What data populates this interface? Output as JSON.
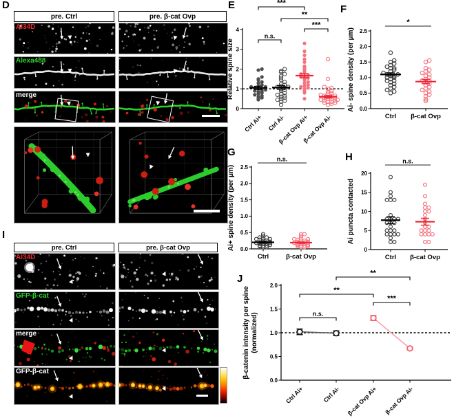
{
  "figure": {
    "panel_labels": {
      "D": "D",
      "E": "E",
      "F": "F",
      "G": "G",
      "H": "H",
      "I": "I",
      "J": "J"
    }
  },
  "panel_d": {
    "col_headers": [
      "pre. Ctrl",
      "pre. β-cat Ovp"
    ],
    "rows": [
      {
        "label": "AI34D",
        "label_color": "#e5262d"
      },
      {
        "label": "Alexa488",
        "label_color": "#2fd42f"
      },
      {
        "label": "merge",
        "label_color": "#ffffff"
      }
    ]
  },
  "panel_i": {
    "col_headers": [
      "pre. Ctrl",
      "pre. β-cat Ovp"
    ],
    "rows": [
      {
        "label": "AI34D",
        "label_color": "#e5262d"
      },
      {
        "label": "GFP-β-cat",
        "label_color": "#2fd42f"
      },
      {
        "label": "merge",
        "label_color": "#ffffff"
      },
      {
        "label": "GFP-β-cat",
        "label_color": "#ffffff"
      }
    ],
    "colorbar_colors": [
      "#ffffff",
      "#ffe97a",
      "#ffc400",
      "#ff7a00",
      "#f02500",
      "#8a0500",
      "#000000"
    ]
  },
  "chart_data": [
    {
      "id": "E",
      "type": "scatter",
      "title": "",
      "ylabel": "Relative spine size",
      "ylim": [
        0,
        4
      ],
      "yticks": [
        0,
        1,
        2,
        3,
        4
      ],
      "ytick_labels": [
        "0",
        "1",
        "2",
        "3",
        "4"
      ],
      "reference_line_y": 1,
      "categories": [
        "Ctrl Ai+",
        "Ctrl Ai-",
        "β-cat Ovp Ai+",
        "β-cat Ovp Ai-"
      ],
      "series": [
        {
          "name": "Ctrl Ai+",
          "marker": "filled",
          "color": "#4d4d4d",
          "bar_color": "#000000",
          "mean": 1.05,
          "sem": 0.08,
          "values": [
            0.45,
            0.5,
            0.55,
            0.6,
            0.65,
            0.7,
            0.75,
            0.8,
            0.85,
            0.9,
            0.9,
            0.95,
            1.0,
            1.0,
            1.05,
            1.1,
            1.1,
            1.15,
            1.2,
            1.3,
            1.35,
            1.45,
            1.5,
            1.6,
            1.95,
            2.0
          ]
        },
        {
          "name": "Ctrl Ai-",
          "marker": "open",
          "color": "#4d4d4d",
          "bar_color": "#000000",
          "mean": 1.07,
          "sem": 0.09,
          "values": [
            0.2,
            0.35,
            0.4,
            0.45,
            0.5,
            0.55,
            0.6,
            0.65,
            0.7,
            0.75,
            0.8,
            0.9,
            0.95,
            1.0,
            1.05,
            1.1,
            1.1,
            1.15,
            1.2,
            1.25,
            1.35,
            1.45,
            1.55,
            1.65,
            1.75,
            1.85,
            1.9,
            2.0
          ]
        },
        {
          "name": "β-cat Ovp Ai+",
          "marker": "filled",
          "color": "#f4737e",
          "bar_color": "#ee2433",
          "mean": 1.67,
          "sem": 0.1,
          "values": [
            0.5,
            0.8,
            0.9,
            1.0,
            1.05,
            1.1,
            1.15,
            1.2,
            1.3,
            1.35,
            1.45,
            1.5,
            1.55,
            1.6,
            1.65,
            1.7,
            1.75,
            1.85,
            1.95,
            2.05,
            2.15,
            2.35,
            2.5,
            2.7,
            2.9,
            3.3
          ]
        },
        {
          "name": "β-cat Ovp Ai-",
          "marker": "open",
          "color": "#f4737e",
          "bar_color": "#ee2433",
          "mean": 0.6,
          "sem": 0.06,
          "values": [
            0.2,
            0.25,
            0.3,
            0.3,
            0.35,
            0.35,
            0.4,
            0.4,
            0.45,
            0.45,
            0.5,
            0.5,
            0.55,
            0.55,
            0.6,
            0.6,
            0.65,
            0.65,
            0.7,
            0.75,
            0.8,
            0.85,
            0.9,
            1.0,
            1.05,
            1.1,
            1.5,
            2.5
          ]
        }
      ],
      "significance": [
        {
          "from": 0,
          "to": 2,
          "label": "***"
        },
        {
          "from": 1,
          "to": 3,
          "label": "**"
        },
        {
          "from": 2,
          "to": 3,
          "label": "***"
        },
        {
          "from": 0,
          "to": 1,
          "label": "n.s."
        }
      ]
    },
    {
      "id": "F",
      "type": "scatter",
      "title": "",
      "ylabel": "Ai- spine density (per μm)",
      "ylim": [
        0,
        2.5
      ],
      "yticks": [
        0,
        0.5,
        1,
        1.5,
        2,
        2.5
      ],
      "ytick_labels": [
        "0.0",
        "0.5",
        "1.0",
        "1.5",
        "2.0",
        "2.5"
      ],
      "categories": [
        "Ctrl",
        "β-cat Ovp"
      ],
      "series": [
        {
          "name": "Ctrl",
          "marker": "open",
          "color": "#3d3d3d",
          "bar_color": "#000000",
          "mean": 1.1,
          "sem": 0.05,
          "values": [
            0.5,
            0.55,
            0.6,
            0.65,
            0.7,
            0.75,
            0.8,
            0.85,
            0.9,
            0.9,
            0.95,
            1.0,
            1.0,
            1.05,
            1.05,
            1.1,
            1.1,
            1.15,
            1.2,
            1.25,
            1.3,
            1.3,
            1.35,
            1.4,
            1.45,
            1.5,
            1.55,
            1.8
          ]
        },
        {
          "name": "β-cat Ovp",
          "marker": "open",
          "color": "#f4737e",
          "bar_color": "#ee2433",
          "mean": 0.87,
          "sem": 0.07,
          "values": [
            0.25,
            0.3,
            0.4,
            0.45,
            0.5,
            0.55,
            0.6,
            0.65,
            0.7,
            0.75,
            0.8,
            0.85,
            0.9,
            0.9,
            0.95,
            1.0,
            1.05,
            1.1,
            1.15,
            1.2,
            1.25,
            1.3,
            1.5,
            1.55
          ]
        }
      ],
      "significance": [
        {
          "from": 0,
          "to": 1,
          "label": "*"
        }
      ]
    },
    {
      "id": "G",
      "type": "scatter",
      "title": "",
      "ylabel": "Ai+ spine density (per μm)",
      "ylim": [
        0,
        2.5
      ],
      "yticks": [
        0,
        0.5,
        1,
        1.5,
        2,
        2.5
      ],
      "ytick_labels": [
        "0.0",
        "0.5",
        "1.0",
        "1.5",
        "2.0",
        "2.5"
      ],
      "categories": [
        "Ctrl",
        "β-cat Ovp"
      ],
      "series": [
        {
          "name": "Ctrl",
          "marker": "open",
          "color": "#3d3d3d",
          "bar_color": "#000000",
          "mean": 0.2,
          "sem": 0.02,
          "values": [
            0.05,
            0.05,
            0.08,
            0.1,
            0.1,
            0.1,
            0.12,
            0.15,
            0.15,
            0.15,
            0.18,
            0.18,
            0.2,
            0.2,
            0.2,
            0.22,
            0.25,
            0.25,
            0.28,
            0.3,
            0.3,
            0.32,
            0.35,
            0.35,
            0.4,
            0.45
          ]
        },
        {
          "name": "β-cat Ovp",
          "marker": "open",
          "color": "#f4737e",
          "bar_color": "#ee2433",
          "mean": 0.19,
          "sem": 0.02,
          "values": [
            0.05,
            0.05,
            0.08,
            0.08,
            0.1,
            0.1,
            0.12,
            0.12,
            0.15,
            0.15,
            0.15,
            0.18,
            0.18,
            0.2,
            0.2,
            0.22,
            0.22,
            0.25,
            0.25,
            0.28,
            0.3,
            0.3,
            0.35,
            0.4,
            0.45,
            0.45
          ]
        }
      ],
      "significance": [
        {
          "from": 0,
          "to": 1,
          "label": "n.s."
        }
      ]
    },
    {
      "id": "H",
      "type": "scatter",
      "title": "",
      "ylabel": "Ai puncta contacted",
      "ylim": [
        0,
        20
      ],
      "yticks": [
        0,
        5,
        10,
        15,
        20
      ],
      "ytick_labels": [
        "0",
        "5",
        "10",
        "15",
        "20"
      ],
      "categories": [
        "Ctrl",
        "β-cat Ovp"
      ],
      "series": [
        {
          "name": "Ctrl",
          "marker": "open",
          "color": "#3d3d3d",
          "bar_color": "#000000",
          "mean": 7.7,
          "sem": 0.9,
          "values": [
            2,
            2,
            3,
            4,
            4,
            4,
            4,
            5,
            5,
            5,
            6,
            7,
            7,
            7,
            8,
            8,
            8,
            8,
            9,
            13,
            13,
            13,
            14,
            15,
            19
          ]
        },
        {
          "name": "β-cat Ovp",
          "marker": "open",
          "color": "#f4737e",
          "bar_color": "#ee2433",
          "mean": 7.3,
          "sem": 0.9,
          "values": [
            2,
            2,
            4,
            4,
            4,
            4,
            5,
            5,
            5,
            6,
            6,
            7,
            8,
            9,
            10,
            10,
            11,
            11,
            12,
            14,
            17
          ]
        }
      ],
      "significance": [
        {
          "from": 0,
          "to": 1,
          "label": "n.s."
        }
      ]
    },
    {
      "id": "J",
      "type": "line",
      "title": "",
      "ylabel_lines": [
        "β-catenin intensity per spine",
        "(normalized)"
      ],
      "ylim": [
        0,
        2
      ],
      "yticks": [
        0,
        0.5,
        1,
        1.5,
        2
      ],
      "ytick_labels": [
        "0.0",
        "0.5",
        "1.0",
        "1.5",
        "2.0"
      ],
      "reference_line_y": 1,
      "categories": [
        "Ctrl Ai+",
        "Ctrl Ai-",
        "β-cat Ovp Ai+",
        "β-cat Ovp Ai-"
      ],
      "points": [
        {
          "name": "Ctrl Ai+",
          "value": 1.02,
          "sem": 0.06,
          "color": "#1a1a1a",
          "bar_color": "#000000"
        },
        {
          "name": "Ctrl Ai-",
          "value": 0.99,
          "sem": 0.05,
          "color": "#1a1a1a",
          "bar_color": "#000000"
        },
        {
          "name": "β-cat Ovp Ai+",
          "value": 1.31,
          "sem": 0.05,
          "color": "#f4606d",
          "bar_color": "#ee2433"
        },
        {
          "name": "β-cat Ovp Ai-",
          "value": 0.67,
          "sem": 0.03,
          "color": "#f4606d",
          "bar_color": "#ee2433"
        }
      ],
      "connections": [
        {
          "from": 0,
          "to": 1,
          "color": "#5a5a5a"
        },
        {
          "from": 2,
          "to": 3,
          "color": "#f9a3ab"
        }
      ],
      "significance": [
        {
          "from": 1,
          "to": 3,
          "label": "**"
        },
        {
          "from": 0,
          "to": 2,
          "label": "**"
        },
        {
          "from": 2,
          "to": 3,
          "label": "***"
        },
        {
          "from": 0,
          "to": 1,
          "label": "n.s."
        }
      ]
    }
  ]
}
